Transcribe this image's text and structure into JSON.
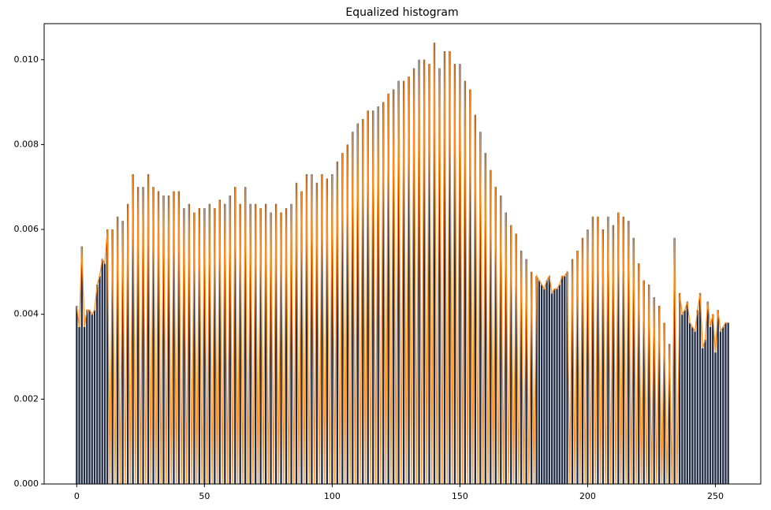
{
  "chart_data": {
    "type": "bar",
    "title": "Equalized histogram",
    "x": [
      0,
      1,
      2,
      3,
      4,
      5,
      6,
      7,
      8,
      9,
      10,
      11,
      12,
      13,
      14,
      15,
      16,
      17,
      18,
      19,
      20,
      21,
      22,
      23,
      24,
      25,
      26,
      27,
      28,
      29,
      30,
      31,
      32,
      33,
      34,
      35,
      36,
      37,
      38,
      39,
      40,
      41,
      42,
      43,
      44,
      45,
      46,
      47,
      48,
      49,
      50,
      51,
      52,
      53,
      54,
      55,
      56,
      57,
      58,
      59,
      60,
      61,
      62,
      63,
      64,
      65,
      66,
      67,
      68,
      69,
      70,
      71,
      72,
      73,
      74,
      75,
      76,
      77,
      78,
      79,
      80,
      81,
      82,
      83,
      84,
      85,
      86,
      87,
      88,
      89,
      90,
      91,
      92,
      93,
      94,
      95,
      96,
      97,
      98,
      99,
      100,
      101,
      102,
      103,
      104,
      105,
      106,
      107,
      108,
      109,
      110,
      111,
      112,
      113,
      114,
      115,
      116,
      117,
      118,
      119,
      120,
      121,
      122,
      123,
      124,
      125,
      126,
      127,
      128,
      129,
      130,
      131,
      132,
      133,
      134,
      135,
      136,
      137,
      138,
      139,
      140,
      141,
      142,
      143,
      144,
      145,
      146,
      147,
      148,
      149,
      150,
      151,
      152,
      153,
      154,
      155,
      156,
      157,
      158,
      159,
      160,
      161,
      162,
      163,
      164,
      165,
      166,
      167,
      168,
      169,
      170,
      171,
      172,
      173,
      174,
      175,
      176,
      177,
      178,
      179,
      180,
      181,
      182,
      183,
      184,
      185,
      186,
      187,
      188,
      189,
      190,
      191,
      192,
      193,
      194,
      195,
      196,
      197,
      198,
      199,
      200,
      201,
      202,
      203,
      204,
      205,
      206,
      207,
      208,
      209,
      210,
      211,
      212,
      213,
      214,
      215,
      216,
      217,
      218,
      219,
      220,
      221,
      222,
      223,
      224,
      225,
      226,
      227,
      228,
      229,
      230,
      231,
      232,
      233,
      234,
      235,
      236,
      237,
      238,
      239,
      240,
      241,
      242,
      243,
      244,
      245,
      246,
      247,
      248,
      249,
      250,
      251,
      252,
      253,
      254,
      255
    ],
    "values": [
      0.0042,
      0.0037,
      0.0056,
      0.0037,
      0.0041,
      0.0041,
      0.004,
      0.0041,
      0.0047,
      0.0049,
      0.0053,
      0.0052,
      0.006,
      0,
      0.006,
      0,
      0.0063,
      0,
      0.0062,
      0,
      0.0066,
      0,
      0.0073,
      0,
      0.007,
      0,
      0.007,
      0,
      0.0073,
      0,
      0.007,
      0,
      0.0069,
      0,
      0.0068,
      0,
      0.0068,
      0,
      0.0069,
      0,
      0.0069,
      0,
      0.0065,
      0,
      0.0066,
      0,
      0.0064,
      0,
      0.0065,
      0,
      0.0065,
      0,
      0.0066,
      0,
      0.0065,
      0,
      0.0067,
      0,
      0.0066,
      0,
      0.0068,
      0,
      0.007,
      0,
      0.0066,
      0,
      0.007,
      0,
      0.0066,
      0,
      0.0066,
      0,
      0.0065,
      0,
      0.0066,
      0,
      0.0064,
      0,
      0.0066,
      0,
      0.0064,
      0,
      0.0065,
      0,
      0.0066,
      0,
      0.0071,
      0,
      0.0069,
      0,
      0.0073,
      0,
      0.0073,
      0,
      0.0071,
      0,
      0.0073,
      0,
      0.0072,
      0,
      0.0073,
      0,
      0.0076,
      0,
      0.0078,
      0,
      0.008,
      0,
      0.0083,
      0,
      0.0085,
      0,
      0.0086,
      0,
      0.0088,
      0,
      0.0088,
      0,
      0.0089,
      0,
      0.009,
      0,
      0.0092,
      0,
      0.0093,
      0,
      0.0095,
      0,
      0.0095,
      0,
      0.0096,
      0,
      0.0098,
      0,
      0.01,
      0,
      0.01,
      0,
      0.0099,
      0,
      0.0104,
      0,
      0.0098,
      0,
      0.0102,
      0,
      0.0102,
      0,
      0.0099,
      0,
      0.0099,
      0,
      0.0095,
      0,
      0.0093,
      0,
      0.0087,
      0,
      0.0083,
      0,
      0.0078,
      0,
      0.0074,
      0,
      0.007,
      0,
      0.0068,
      0,
      0.0064,
      0,
      0.0061,
      0,
      0.0059,
      0,
      0.0055,
      0,
      0.0053,
      0,
      0.005,
      0,
      0.0049,
      0.0048,
      0.0047,
      0.0046,
      0.0048,
      0.0049,
      0.0045,
      0.0046,
      0.0046,
      0.0047,
      0.0049,
      0.0049,
      0.005,
      0,
      0.0053,
      0,
      0.0055,
      0,
      0.0058,
      0,
      0.006,
      0,
      0.0063,
      0,
      0.0063,
      0,
      0.006,
      0,
      0.0063,
      0,
      0.0061,
      0,
      0.0064,
      0,
      0.0063,
      0,
      0.0062,
      0,
      0.0058,
      0,
      0.0052,
      0,
      0.0048,
      0,
      0.0047,
      0,
      0.0044,
      0,
      0.0042,
      0,
      0.0038,
      0,
      0.0033,
      0,
      0.0058,
      0,
      0.0045,
      0.004,
      0.0041,
      0.0043,
      0.0038,
      0.0037,
      0.0036,
      0.0041,
      0.0045,
      0.0032,
      0.0034,
      0.0043,
      0.0037,
      0.004,
      0.0031,
      0.0041,
      0.0036,
      0.0037,
      0.0038,
      0.0038
    ],
    "color": "#1f2a44",
    "line_color": "#ff8c1a",
    "xlim": [
      -12.75,
      267.75
    ],
    "xticks": [
      0,
      50,
      100,
      150,
      200,
      250
    ],
    "ylim": [
      0,
      0.01085
    ],
    "yticks": [
      {
        "value": 0,
        "label": "0.000"
      },
      {
        "value": 0.002,
        "label": "0.002"
      },
      {
        "value": 0.004,
        "label": "0.004"
      },
      {
        "value": 0.006,
        "label": "0.006"
      },
      {
        "value": 0.008,
        "label": "0.008"
      },
      {
        "value": 0.01,
        "label": "0.010"
      }
    ]
  }
}
